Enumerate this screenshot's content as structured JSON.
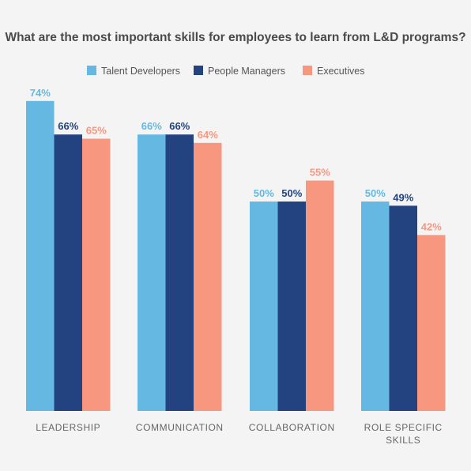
{
  "chart_data": {
    "type": "bar",
    "title": "What are the most important skills for employees to learn from L&D programs?",
    "categories": [
      [
        "LEADERSHIP"
      ],
      [
        "COMMUNICATION"
      ],
      [
        "COLLABORATION"
      ],
      [
        "ROLE SPECIFIC",
        "SKILLS"
      ]
    ],
    "series": [
      {
        "name": "Talent Developers",
        "color": "#65b8e2",
        "values": [
          74,
          66,
          50,
          50
        ],
        "labels": [
          "74%",
          "66%",
          "50%",
          "50%"
        ]
      },
      {
        "name": "People Managers",
        "color": "#234280",
        "values": [
          66,
          66,
          50,
          49
        ],
        "labels": [
          "66%",
          "66%",
          "50%",
          "49%"
        ]
      },
      {
        "name": "Executives",
        "color": "#f8977f",
        "values": [
          65,
          64,
          55,
          42
        ],
        "labels": [
          "65%",
          "64%",
          "55%",
          "42%"
        ]
      }
    ],
    "ylim": [
      0,
      80
    ],
    "grid": false,
    "legend_position": "top-center",
    "xlabel": "",
    "ylabel": ""
  }
}
